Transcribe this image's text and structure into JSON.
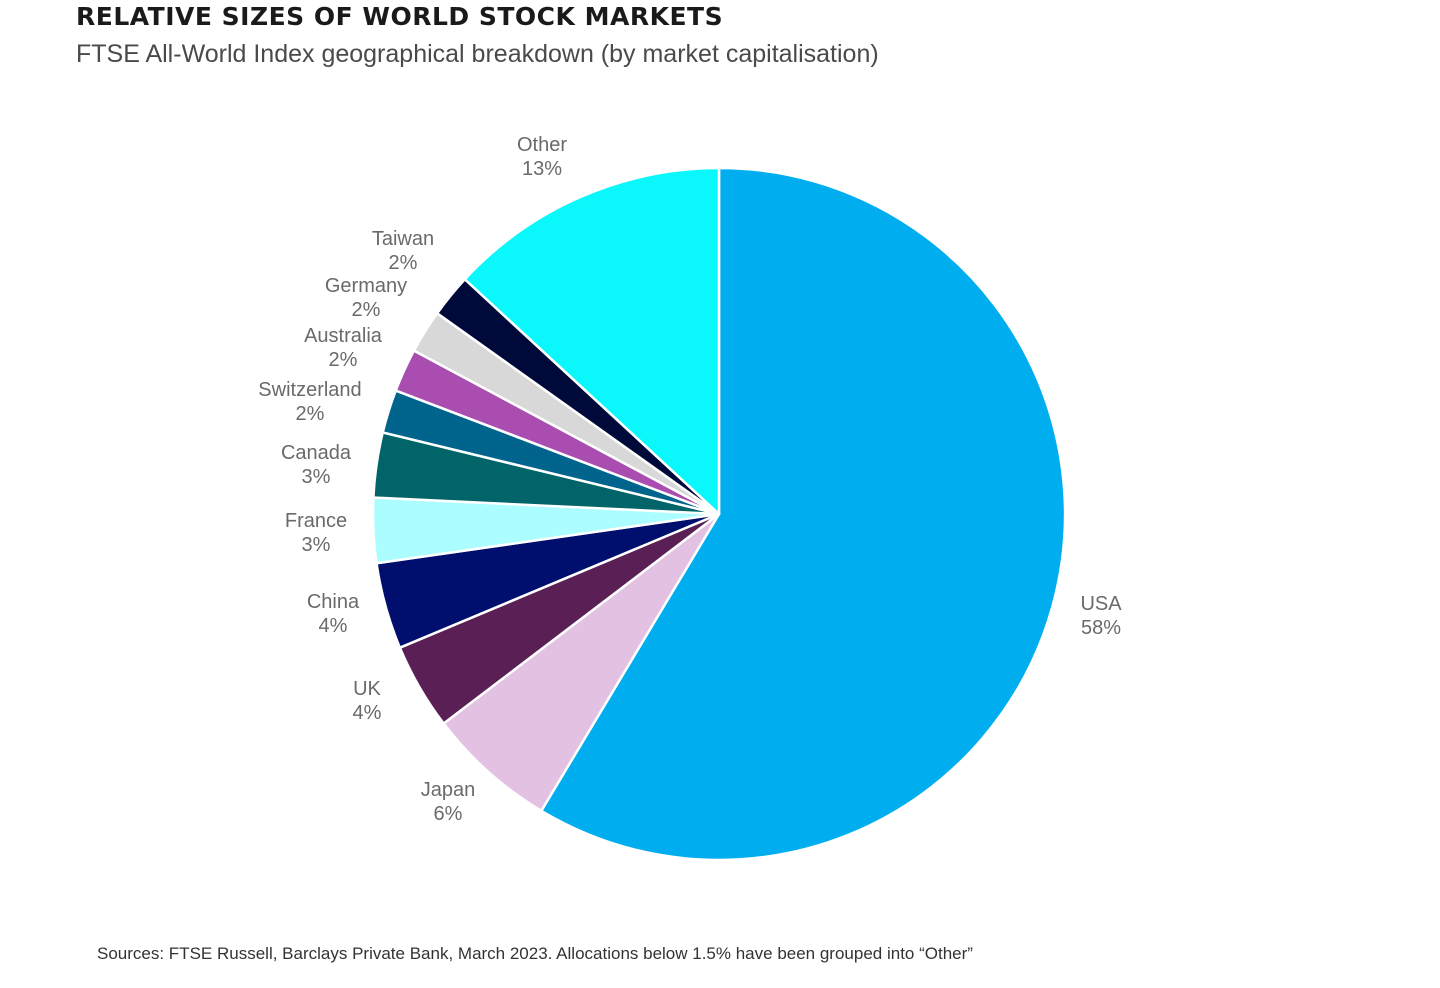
{
  "header": {
    "title": "RELATIVE SIZES OF WORLD STOCK MARKETS",
    "subtitle": "FTSE All-World Index geographical breakdown (by market capitalisation)"
  },
  "footer": {
    "source": "Sources: FTSE Russell, Barclays Private Bank, March 2023. Allocations below 1.5% have been grouped into “Other”"
  },
  "chart_data": {
    "type": "pie",
    "title": "RELATIVE SIZES OF WORLD STOCK MARKETS",
    "subtitle": "FTSE All-World Index geographical breakdown (by market capitalisation)",
    "unit": "%",
    "slices": [
      {
        "label": "USA",
        "value": 58,
        "value_label": "58%",
        "color": "#00adef"
      },
      {
        "label": "Japan",
        "value": 6,
        "value_label": "6%",
        "color": "#e2c1e2"
      },
      {
        "label": "UK",
        "value": 4,
        "value_label": "4%",
        "color": "#5a1f55"
      },
      {
        "label": "China",
        "value": 4,
        "value_label": "4%",
        "color": "#000f6e"
      },
      {
        "label": "France",
        "value": 3,
        "value_label": "3%",
        "color": "#acfdff"
      },
      {
        "label": "Canada",
        "value": 3,
        "value_label": "3%",
        "color": "#006468"
      },
      {
        "label": "Switzerland",
        "value": 2,
        "value_label": "2%",
        "color": "#00648c"
      },
      {
        "label": "Australia",
        "value": 2,
        "value_label": "2%",
        "color": "#a94eb0"
      },
      {
        "label": "Germany",
        "value": 2,
        "value_label": "2%",
        "color": "#d8d8d8"
      },
      {
        "label": "Taiwan",
        "value": 2,
        "value_label": "2%",
        "color": "#000a3a"
      },
      {
        "label": "Other",
        "value": 13,
        "value_label": "13%",
        "color": "#0af7fb"
      }
    ],
    "start_angle_deg": 0,
    "direction": "clockwise",
    "legend": "none"
  }
}
